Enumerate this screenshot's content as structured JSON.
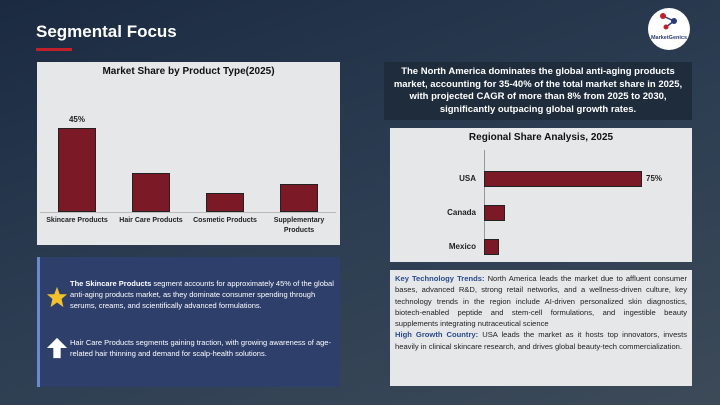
{
  "title": "Segmental Focus",
  "logo": "MarketGenics",
  "summary": "The North America dominates the global anti-aging products market, accounting for 35-40% of the total market share in 2025, with projected CAGR of more than 8% from 2025 to 2030, significantly outpacing global growth rates.",
  "chart_data": [
    {
      "type": "bar",
      "title": "Market Share by Product Type(2025)",
      "categories": [
        "Skincare Products",
        "Hair Care Products",
        "Cosmetic Products",
        "Supplementary Products"
      ],
      "values": [
        45,
        21,
        10,
        15
      ],
      "value_labels": [
        "45%",
        null,
        null,
        null
      ],
      "color": "#7b1a26"
    },
    {
      "type": "hbar",
      "title": "Regional Share Analysis, 2025",
      "categories": [
        "USA",
        "Canada",
        "Mexico"
      ],
      "values": [
        75,
        10,
        7
      ],
      "value_labels": [
        "75%",
        null,
        null
      ],
      "color": "#7b1a26"
    }
  ],
  "notes": [
    {
      "lead": "The Skincare Products",
      "text": " segment accounts for approximately 45% of the global anti-aging products market, as they dominate consumer spending through serums, creams, and scientifically advanced formulations."
    },
    {
      "text": "Hair Care Products segments gaining traction, with growing awareness of age-related hair thinning and demand for scalp-health solutions."
    }
  ],
  "insights": [
    {
      "label": "Key Technology Trends:",
      "text": " North America leads the market due to affluent consumer bases, advanced R&D, strong retail networks, and a wellness-driven culture, key technology trends in the region include AI-driven personalized skin diagnostics, biotech-enabled peptide and stem-cell formulations, and ingestible beauty supplements integrating nutraceutical science"
    },
    {
      "label": "High Growth Country:",
      "text": " USA leads the market as it hosts top innovators, invests heavily in clinical skincare research, and drives global beauty-tech commercialization."
    }
  ]
}
